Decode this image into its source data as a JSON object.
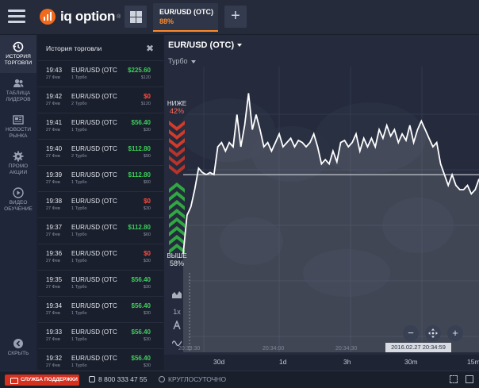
{
  "header": {
    "brand": "iq option",
    "brand_mark": "®",
    "asset_tab": {
      "name": "EUR/USD (OTC)",
      "payout": "88%"
    },
    "add_tab_label": "+"
  },
  "nav": [
    {
      "label": "ИСТОРИЯ ТОРГОВЛИ",
      "icon": "history-icon",
      "active": true
    },
    {
      "label": "ТАБЛИЦА ЛИДЕРОВ",
      "icon": "leaders-icon",
      "active": false
    },
    {
      "label": "НОВОСТИ РЫНКА",
      "icon": "news-icon",
      "active": false
    },
    {
      "label": "ПРОМО АКЦИИ",
      "icon": "promo-gear-icon",
      "active": false
    },
    {
      "label": "ВИДЕО ОБУЧЕНИЕ",
      "icon": "video-play-icon",
      "active": false
    },
    {
      "label": "СКРЫТЬ",
      "icon": "hide-arrow-icon",
      "active": false
    }
  ],
  "history": {
    "title": "История торговли",
    "close": "✖",
    "rows": [
      {
        "time": "19:43",
        "date": "27 Фев",
        "asset": "EUR/USD (OTC",
        "kind": "1 Турбо",
        "profit": "$225.60",
        "stake": "$120",
        "win": true
      },
      {
        "time": "19:42",
        "date": "27 Фев",
        "asset": "EUR/USD (OTC",
        "kind": "2 Турбо",
        "profit": "$0",
        "stake": "$120",
        "win": false
      },
      {
        "time": "19:41",
        "date": "27 Фев",
        "asset": "EUR/USD (OTC",
        "kind": "1 Турбо",
        "profit": "$56.40",
        "stake": "$30",
        "win": true
      },
      {
        "time": "19:40",
        "date": "27 Фев",
        "asset": "EUR/USD (OTC",
        "kind": "2 Турбо",
        "profit": "$112.80",
        "stake": "$90",
        "win": true
      },
      {
        "time": "19:39",
        "date": "27 Фев",
        "asset": "EUR/USD (OTC",
        "kind": "1 Турбо",
        "profit": "$112.80",
        "stake": "$60",
        "win": true
      },
      {
        "time": "19:38",
        "date": "27 Фев",
        "asset": "EUR/USD (OTC",
        "kind": "1 Турбо",
        "profit": "$0",
        "stake": "$30",
        "win": false
      },
      {
        "time": "19:37",
        "date": "27 Фев",
        "asset": "EUR/USD (OTC",
        "kind": "1 Турбо",
        "profit": "$112.80",
        "stake": "$60",
        "win": true
      },
      {
        "time": "19:36",
        "date": "27 Фев",
        "asset": "EUR/USD (OTC",
        "kind": "1 Турбо",
        "profit": "$0",
        "stake": "$30",
        "win": false
      },
      {
        "time": "19:35",
        "date": "27 Фев",
        "asset": "EUR/USD (OTC",
        "kind": "1 Турбо",
        "profit": "$56.40",
        "stake": "$30",
        "win": true
      },
      {
        "time": "19:34",
        "date": "27 Фев",
        "asset": "EUR/USD (OTC",
        "kind": "1 Турбо",
        "profit": "$56.40",
        "stake": "$30",
        "win": true
      },
      {
        "time": "19:33",
        "date": "27 Фев",
        "asset": "EUR/USD (OTC",
        "kind": "1 Турбо",
        "profit": "$56.40",
        "stake": "$30",
        "win": true
      },
      {
        "time": "19:32",
        "date": "27 Фев",
        "asset": "EUR/USD (OTC",
        "kind": "1 Турбо",
        "profit": "$56.40",
        "stake": "$30",
        "win": true
      }
    ]
  },
  "chart": {
    "asset": "EUR/USD (OTC)",
    "mode": "Турбо",
    "sentiment_low_label": "НИЖЕ",
    "sentiment_low_value": "42%",
    "sentiment_high_label": "ВЫШЕ",
    "sentiment_high_value": "58%",
    "time_ticks": [
      "20:33:30",
      "20:34:00",
      "20:34:30"
    ],
    "current_time": "2016.02.27 20:34:59",
    "timeframes": [
      "30d",
      "1d",
      "3h",
      "30m",
      "15m"
    ],
    "tool_labels": [
      "1х"
    ]
  },
  "chart_data": {
    "type": "line",
    "series": [
      {
        "values": [
          0.2,
          0.38,
          0.42,
          0.5,
          0.6,
          0.58,
          0.57,
          0.58,
          0.57,
          0.7,
          0.72,
          0.68,
          0.72,
          0.7,
          0.85,
          0.7,
          0.8,
          0.95,
          0.78,
          0.85,
          0.78,
          0.7,
          0.72,
          0.68,
          0.72,
          0.76,
          0.7,
          0.72,
          0.74,
          0.7,
          0.73,
          0.72,
          0.7,
          0.72,
          0.76,
          0.7,
          0.62,
          0.64,
          0.62,
          0.68,
          0.63,
          0.72,
          0.73,
          0.7,
          0.72,
          0.76,
          0.68,
          0.74,
          0.7,
          0.74,
          0.7,
          0.78,
          0.74,
          0.8,
          0.75,
          0.78,
          0.72,
          0.76,
          0.73,
          0.8,
          0.72,
          0.78,
          0.82,
          0.78,
          0.74,
          0.7,
          0.72,
          0.62,
          0.57,
          0.52,
          0.57,
          0.52,
          0.5,
          0.5,
          0.52,
          0.48,
          0.5,
          0.55
        ]
      }
    ],
    "strike_level": 0.57
  },
  "footer": {
    "support": "СЛУЖБА ПОДДЕРЖКИ",
    "phone": "8 800 333 47 55",
    "hours": "КРУГЛОСУТОЧНО"
  }
}
